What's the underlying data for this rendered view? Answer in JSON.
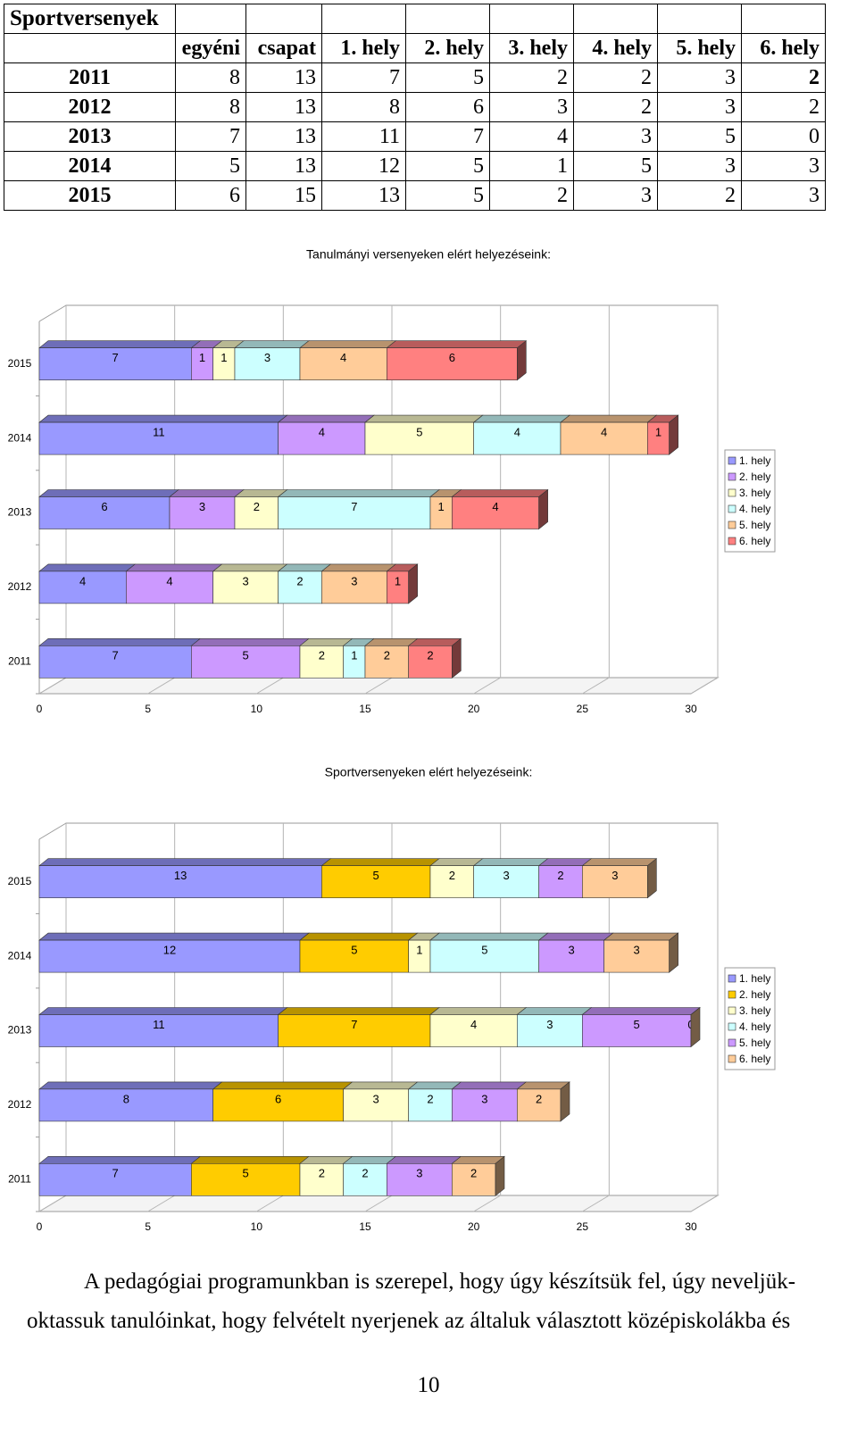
{
  "table": {
    "title": "Sportversenyek",
    "headers": [
      "egyéni",
      "csapat",
      "1. hely",
      "2. hely",
      "3. hely",
      "4. hely",
      "5. hely",
      "6. hely"
    ],
    "rows": [
      {
        "year": "2011",
        "values": [
          "8",
          "13",
          "7",
          "5",
          "2",
          "2",
          "3",
          "2"
        ]
      },
      {
        "year": "2012",
        "values": [
          "8",
          "13",
          "8",
          "6",
          "3",
          "2",
          "3",
          "2"
        ]
      },
      {
        "year": "2013",
        "values": [
          "7",
          "13",
          "11",
          "7",
          "4",
          "3",
          "5",
          "0"
        ]
      },
      {
        "year": "2014",
        "values": [
          "5",
          "13",
          "12",
          "5",
          "1",
          "5",
          "3",
          "3"
        ]
      },
      {
        "year": "2015",
        "values": [
          "6",
          "15",
          "13",
          "5",
          "2",
          "3",
          "2",
          "3"
        ]
      }
    ]
  },
  "chart_data": [
    {
      "type": "bar",
      "orientation": "horizontal",
      "stacked": true,
      "title": "Tanulmányi versenyeken elért helyezéseink:",
      "categories": [
        "2011",
        "2012",
        "2013",
        "2014",
        "2015"
      ],
      "xlim": [
        0,
        30
      ],
      "xticks": [
        "0",
        "5",
        "10",
        "15",
        "20",
        "25",
        "30"
      ],
      "legend": "right",
      "series": [
        {
          "name": "1. hely",
          "color": "#9999FF",
          "values": [
            7,
            4,
            6,
            11,
            7
          ]
        },
        {
          "name": "2. hely",
          "color": "#CC99FF",
          "values": [
            5,
            4,
            3,
            4,
            1
          ]
        },
        {
          "name": "3. hely",
          "color": "#FFFFCC",
          "values": [
            2,
            3,
            2,
            5,
            1
          ]
        },
        {
          "name": "4. hely",
          "color": "#CCFFFF",
          "values": [
            1,
            2,
            7,
            4,
            3
          ]
        },
        {
          "name": "5. hely",
          "color": "#FFCC99",
          "values": [
            2,
            3,
            1,
            4,
            4
          ]
        },
        {
          "name": "6. hely",
          "color": "#FF8080",
          "values": [
            2,
            1,
            4,
            1,
            6
          ]
        }
      ]
    },
    {
      "type": "bar",
      "orientation": "horizontal",
      "stacked": true,
      "title": "Sportversenyeken elért helyezéseink:",
      "categories": [
        "2011",
        "2012",
        "2013",
        "2014",
        "2015"
      ],
      "xlim": [
        0,
        30
      ],
      "xticks": [
        "0",
        "5",
        "10",
        "15",
        "20",
        "25",
        "30"
      ],
      "legend": "right",
      "series": [
        {
          "name": "1. hely",
          "color": "#9999FF",
          "values": [
            7,
            8,
            11,
            12,
            13
          ]
        },
        {
          "name": "2. hely",
          "color": "#FFCC00",
          "values": [
            5,
            6,
            7,
            5,
            5
          ]
        },
        {
          "name": "3. hely",
          "color": "#FFFFCC",
          "values": [
            2,
            3,
            4,
            1,
            2
          ]
        },
        {
          "name": "4. hely",
          "color": "#CCFFFF",
          "values": [
            2,
            2,
            3,
            5,
            3
          ]
        },
        {
          "name": "5. hely",
          "color": "#CC99FF",
          "values": [
            3,
            3,
            5,
            3,
            2
          ]
        },
        {
          "name": "6. hely",
          "color": "#FFCC99",
          "values": [
            2,
            2,
            0,
            3,
            3
          ]
        }
      ]
    }
  ],
  "paragraph": {
    "line1": "A pedagógiai programunkban is szerepel, hogy úgy készítsük fel, úgy neveljük-",
    "line2": "oktassuk tanulóinkat, hogy felvételt nyerjenek az általuk választott középiskolákba és"
  },
  "page_number": "10"
}
